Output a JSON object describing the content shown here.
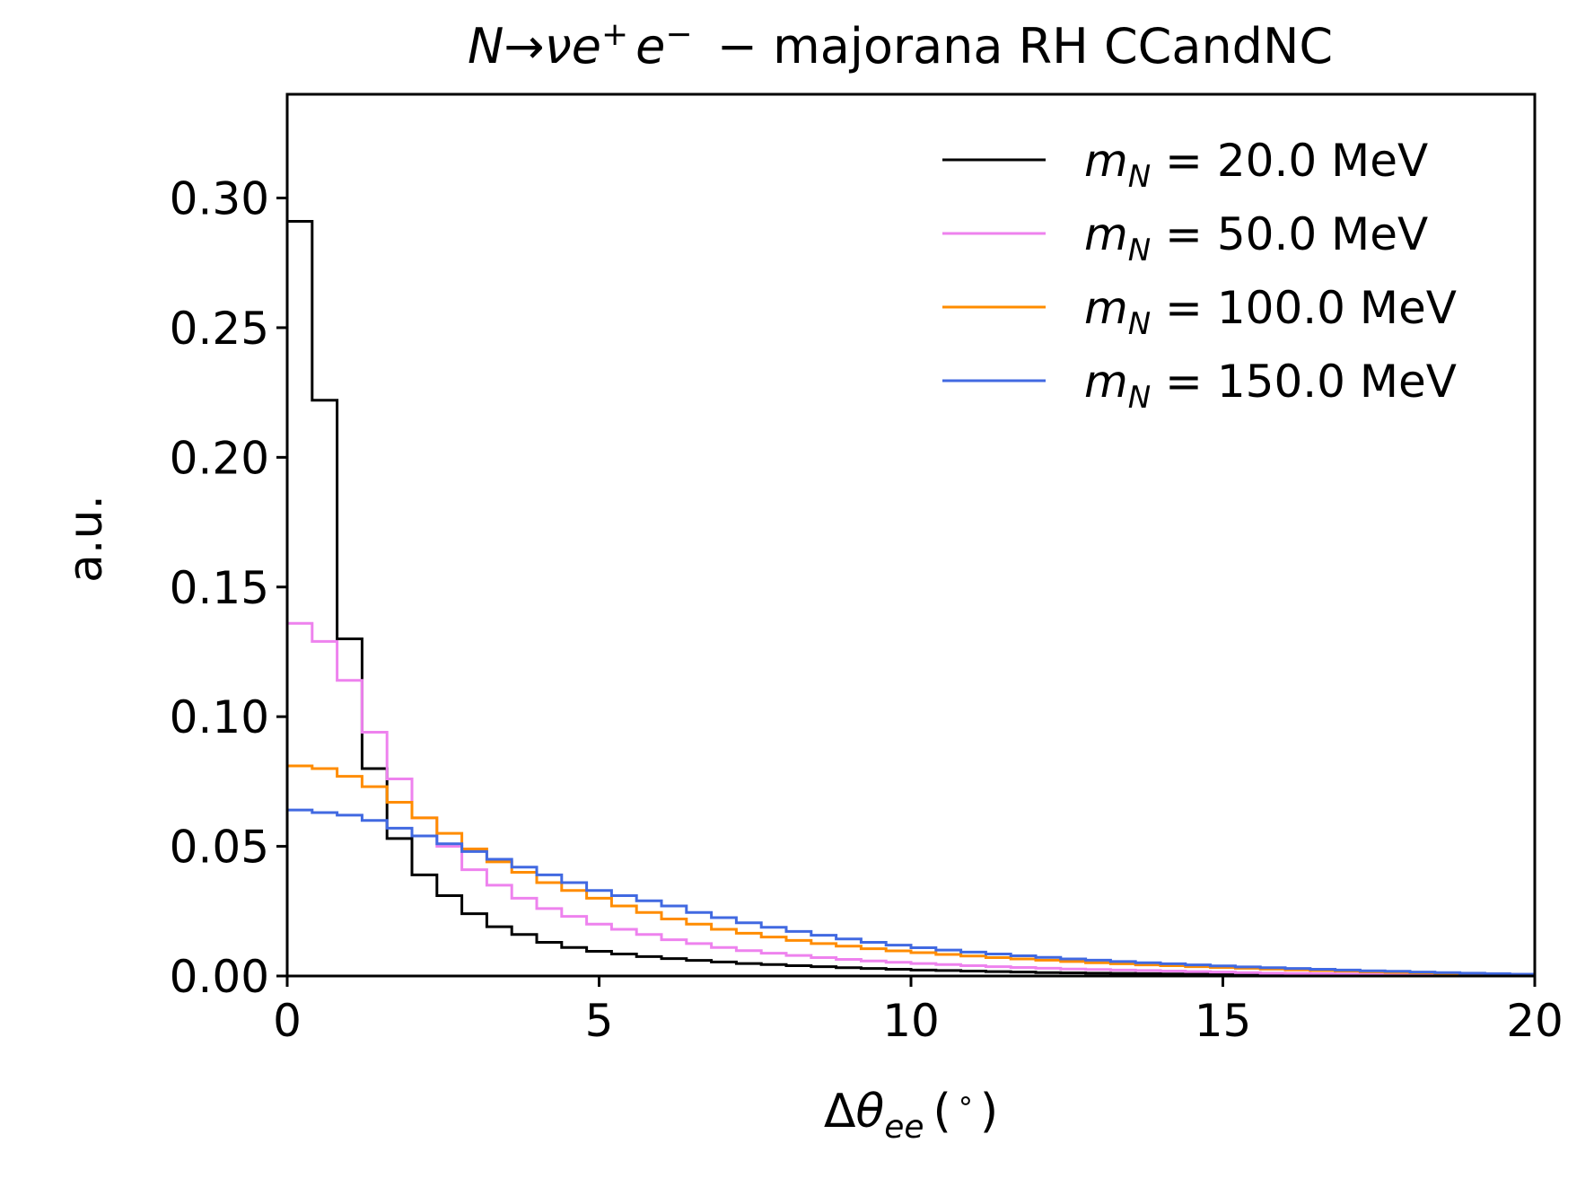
{
  "chart_data": {
    "type": "line",
    "drawstyle": "steps",
    "title_parts": {
      "N": "N",
      "arrow": "→",
      "nu": "ν",
      "e1": "e",
      "plus": "+",
      "e2": "e",
      "minus": "−",
      "rest": " − majorana RH CCandNC"
    },
    "xlabel_parts": {
      "delta": "Δ",
      "theta": "θ",
      "sub": "ee",
      "paren_open": "(",
      "degree": "∘",
      "paren_close": ")"
    },
    "ylabel": "a.u.",
    "xlim": [
      0,
      20
    ],
    "ylim": [
      0,
      0.34
    ],
    "xticks": [
      "0",
      "5",
      "10",
      "15",
      "20"
    ],
    "yticks": [
      "0.00",
      "0.05",
      "0.10",
      "0.15",
      "0.20",
      "0.25",
      "0.30"
    ],
    "grid": false,
    "legend_position": "top-right",
    "bin_edges": [
      0,
      0.4,
      0.8,
      1.2,
      1.6,
      2.0,
      2.4,
      2.8,
      3.2,
      3.6,
      4.0,
      4.4,
      4.8,
      5.2,
      5.6,
      6.0,
      6.4,
      6.8,
      7.2,
      7.6,
      8.0,
      8.4,
      8.8,
      9.2,
      9.6,
      10.0,
      10.4,
      10.8,
      11.2,
      11.6,
      12.0,
      12.4,
      12.8,
      13.2,
      13.6,
      14.0,
      14.4,
      14.8,
      15.2,
      15.6,
      16.0,
      16.4,
      16.8,
      17.2,
      17.6,
      18.0,
      18.4,
      18.8,
      19.2,
      19.6,
      20.0
    ],
    "series": [
      {
        "legend_sym": "m",
        "legend_sub": "N",
        "legend_text": " = 20.0 MeV",
        "color": "#000000",
        "values": [
          0.291,
          0.222,
          0.13,
          0.08,
          0.053,
          0.039,
          0.031,
          0.024,
          0.019,
          0.016,
          0.013,
          0.011,
          0.0095,
          0.0085,
          0.0075,
          0.0067,
          0.006,
          0.0054,
          0.0048,
          0.0044,
          0.004,
          0.0036,
          0.0032,
          0.0029,
          0.0026,
          0.0023,
          0.0021,
          0.0019,
          0.0017,
          0.0015,
          0.0013,
          0.0012,
          0.0011,
          0.001,
          0.0009,
          0.0008,
          0.0007,
          0.0006,
          0.0005,
          0.0004,
          0.00035,
          0.0003,
          0.00025,
          0.0002,
          0.00015,
          0.0001,
          8e-05,
          5e-05,
          3e-05,
          2e-05
        ]
      },
      {
        "legend_sym": "m",
        "legend_sub": "N",
        "legend_text": " = 50.0 MeV",
        "color": "#ee82ee",
        "values": [
          0.136,
          0.129,
          0.114,
          0.094,
          0.076,
          0.061,
          0.05,
          0.041,
          0.035,
          0.03,
          0.026,
          0.023,
          0.02,
          0.018,
          0.016,
          0.014,
          0.0125,
          0.011,
          0.0098,
          0.0088,
          0.0079,
          0.0071,
          0.0064,
          0.0058,
          0.0053,
          0.0048,
          0.0044,
          0.004,
          0.0036,
          0.0033,
          0.003,
          0.0027,
          0.0025,
          0.0023,
          0.0021,
          0.0019,
          0.0017,
          0.0015,
          0.0013,
          0.0011,
          0.001,
          0.0009,
          0.0008,
          0.0007,
          0.0006,
          0.0005,
          0.0004,
          0.0003,
          0.0002,
          0.0001
        ]
      },
      {
        "legend_sym": "m",
        "legend_sub": "N",
        "legend_text": " = 100.0 MeV",
        "color": "#ff8c00",
        "values": [
          0.081,
          0.08,
          0.077,
          0.073,
          0.067,
          0.061,
          0.055,
          0.049,
          0.044,
          0.04,
          0.036,
          0.033,
          0.03,
          0.027,
          0.0245,
          0.022,
          0.02,
          0.018,
          0.0165,
          0.015,
          0.0137,
          0.0125,
          0.0115,
          0.0105,
          0.0097,
          0.009,
          0.0083,
          0.0077,
          0.0071,
          0.0066,
          0.0061,
          0.0056,
          0.0051,
          0.0047,
          0.0043,
          0.004,
          0.0036,
          0.0033,
          0.003,
          0.0027,
          0.0024,
          0.0021,
          0.0019,
          0.0016,
          0.0014,
          0.0012,
          0.001,
          0.0008,
          0.0006,
          0.0004
        ]
      },
      {
        "legend_sym": "m",
        "legend_sub": "N",
        "legend_text": " = 150.0 MeV",
        "color": "#4169e1",
        "values": [
          0.064,
          0.063,
          0.062,
          0.06,
          0.057,
          0.054,
          0.051,
          0.048,
          0.045,
          0.042,
          0.039,
          0.036,
          0.033,
          0.031,
          0.029,
          0.027,
          0.0245,
          0.0225,
          0.0205,
          0.0188,
          0.0172,
          0.0157,
          0.0143,
          0.013,
          0.0119,
          0.0109,
          0.01,
          0.0092,
          0.0085,
          0.0078,
          0.0072,
          0.0066,
          0.0061,
          0.0056,
          0.0051,
          0.0047,
          0.0043,
          0.0039,
          0.0035,
          0.0032,
          0.0029,
          0.0026,
          0.0023,
          0.002,
          0.0018,
          0.0015,
          0.0013,
          0.0011,
          0.0009,
          0.0007
        ]
      }
    ]
  }
}
